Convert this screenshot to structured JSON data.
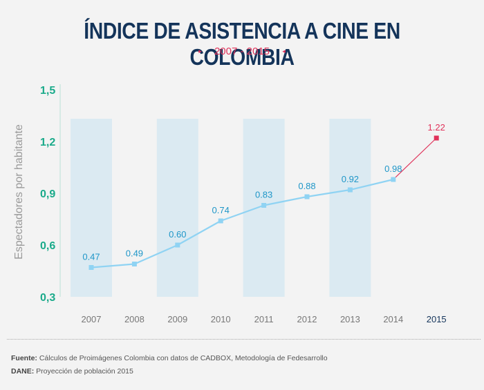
{
  "header": {
    "title": "ÍNDICE DE ASISTENCIA A CINE EN COLOMBIA",
    "subtitle": "2007 - 2015",
    "subtitle_marker_left": "▸",
    "subtitle_marker_right": "◂"
  },
  "chart_data": {
    "type": "line",
    "ylabel": "Espectadores por habitante",
    "ylim": [
      0.3,
      1.5
    ],
    "yticks": [
      "1,5",
      "1,2",
      "0,9",
      "0,6",
      "0,3"
    ],
    "ytick_values": [
      1.5,
      1.2,
      0.9,
      0.6,
      0.3
    ],
    "categories": [
      "2007",
      "2008",
      "2009",
      "2010",
      "2011",
      "2012",
      "2013",
      "2014",
      "2015"
    ],
    "values": [
      0.47,
      0.49,
      0.6,
      0.74,
      0.83,
      0.88,
      0.92,
      0.98,
      1.22
    ],
    "labels": [
      "0.47",
      "0.49",
      "0.60",
      "0.74",
      "0.83",
      "0.88",
      "0.92",
      "0.98",
      "1.22"
    ],
    "shaded_categories": [
      "2007",
      "2009",
      "2011",
      "2013"
    ],
    "highlight_category": "2015",
    "colors": {
      "line": "#8fd3f3",
      "highlight": "#e0325a",
      "label": "#1e96c8",
      "ytick": "#1aaa8a",
      "band": "#d6e8f1",
      "xtick": "#777777",
      "xtick_highlight": "#14345a"
    }
  },
  "footer": {
    "source_label": "Fuente:",
    "source_text": "Cálculos de Proimágenes Colombia con datos de CADBOX, Metodología de Fedesarrollo",
    "dane_label": "DANE:",
    "dane_text": "Proyección de población 2015"
  }
}
